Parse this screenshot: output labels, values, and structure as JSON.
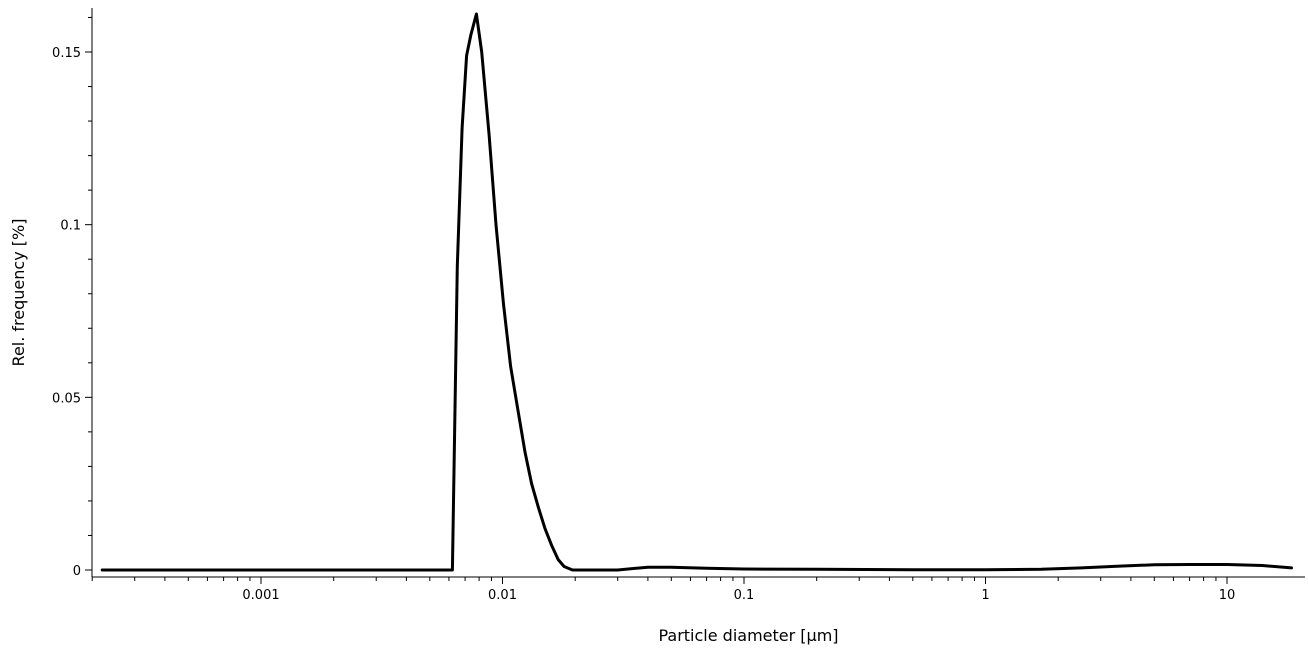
{
  "chart_data": {
    "type": "line",
    "title": "",
    "xlabel": "Particle diameter [µm]",
    "ylabel": "Rel. frequency [%]",
    "x_scale": "log",
    "xlim": [
      0.0002,
      19
    ],
    "ylim": [
      0,
      0.162
    ],
    "grid": false,
    "legend": "none",
    "line_color": "#000000",
    "x_ticks": [
      {
        "value": 0.001,
        "label": "0.001"
      },
      {
        "value": 0.01,
        "label": "0.01"
      },
      {
        "value": 0.1,
        "label": "0.1"
      },
      {
        "value": 1,
        "label": "1"
      },
      {
        "value": 10,
        "label": "10"
      }
    ],
    "y_ticks": [
      {
        "value": 0,
        "label": "0"
      },
      {
        "value": 0.05,
        "label": "0.05"
      },
      {
        "value": 0.1,
        "label": "0.1"
      },
      {
        "value": 0.15,
        "label": "0.15"
      }
    ],
    "series": [
      {
        "x": [
          0.00022,
          0.0006,
          0.0015,
          0.003,
          0.005,
          0.0062,
          0.0065,
          0.0068,
          0.0071,
          0.0074,
          0.0078,
          0.0082,
          0.0088,
          0.0094,
          0.0101,
          0.0108,
          0.0116,
          0.0124,
          0.0132,
          0.0141,
          0.015,
          0.016,
          0.017,
          0.018,
          0.0195,
          0.022,
          0.03,
          0.04,
          0.05,
          0.07,
          0.1,
          0.2,
          0.5,
          1.0,
          1.7,
          2.5,
          3.5,
          5.0,
          7.0,
          10.0,
          14.0,
          18.5
        ],
        "y": [
          0,
          0,
          0,
          0,
          0,
          0,
          0.088,
          0.128,
          0.149,
          0.155,
          0.161,
          0.15,
          0.126,
          0.1,
          0.077,
          0.059,
          0.046,
          0.034,
          0.025,
          0.018,
          0.012,
          0.007,
          0.003,
          0.001,
          0,
          0,
          0,
          0.0008,
          0.0008,
          0.0005,
          0.0003,
          0.0002,
          0.0001,
          0.0001,
          0.0002,
          0.0006,
          0.0011,
          0.0015,
          0.0016,
          0.0016,
          0.0013,
          0.0006
        ]
      }
    ]
  }
}
